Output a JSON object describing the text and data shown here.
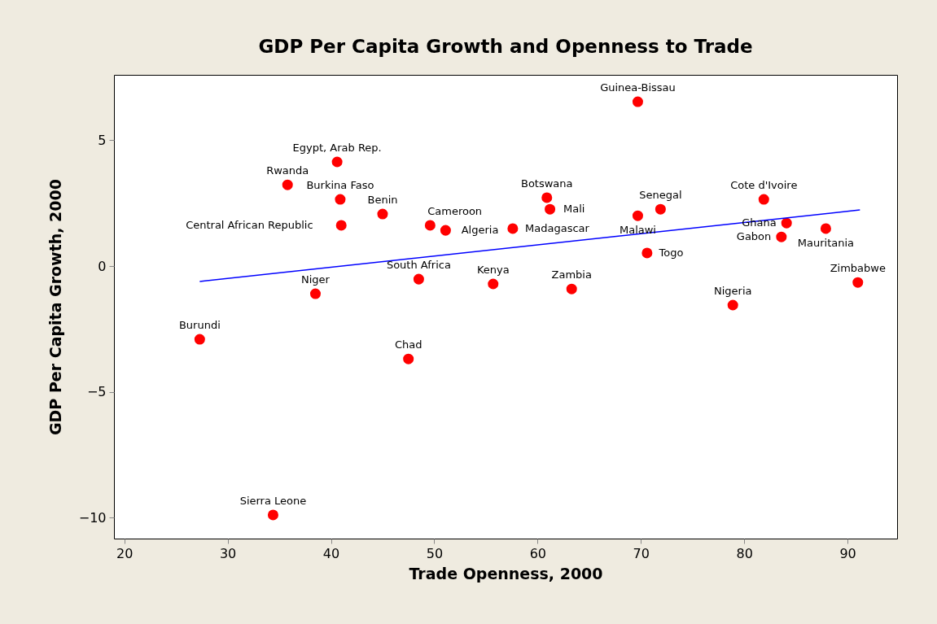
{
  "chart_data": {
    "type": "scatter",
    "title": "GDP Per Capita Growth and Openness to Trade",
    "xlabel": "Trade Openness, 2000",
    "ylabel": "GDP Per Capita Growth, 2000",
    "series": [
      {
        "color": "#ff0000",
        "marker": "circle",
        "x": [
          69.7,
          40.6,
          35.8,
          40.9,
          41.0,
          45.0,
          49.6,
          51.1,
          57.6,
          60.9,
          61.2,
          69.7,
          71.9,
          81.9,
          84.1,
          83.6,
          87.9,
          70.6,
          91.0,
          78.9,
          63.3,
          55.7,
          48.5,
          38.5,
          47.5,
          27.3,
          34.4
        ],
        "values": [
          6.53,
          4.14,
          3.23,
          2.65,
          1.62,
          2.07,
          1.62,
          1.42,
          1.49,
          2.72,
          2.26,
          2.0,
          2.26,
          2.65,
          1.71,
          1.16,
          1.49,
          0.52,
          -0.65,
          -1.55,
          -0.91,
          -0.71,
          -0.52,
          -1.1,
          -3.69,
          -2.91,
          -9.89
        ]
      },
      {
        "type": "line",
        "color": "#0000ff",
        "x": [
          27.3,
          91.2
        ],
        "values": [
          -0.61,
          2.23
        ]
      }
    ],
    "annotations": [
      {
        "text": "Guinea-Bissau",
        "x": 69.7,
        "y": 6.53
      },
      {
        "text": "Egypt, Arab Rep.",
        "x": 40.6,
        "y": 4.14
      },
      {
        "text": "Rwanda",
        "x": 35.8,
        "y": 3.23
      },
      {
        "text": "Burkina Faso",
        "x": 40.9,
        "y": 2.65
      },
      {
        "text": "Central African Republic",
        "x": 41.0,
        "y": 1.62
      },
      {
        "text": "Benin",
        "x": 45.0,
        "y": 2.07
      },
      {
        "text": "Cameroon",
        "x": 49.6,
        "y": 1.62
      },
      {
        "text": "Algeria",
        "x": 51.1,
        "y": 1.42
      },
      {
        "text": "Madagascar",
        "x": 57.6,
        "y": 1.49
      },
      {
        "text": "Botswana",
        "x": 60.9,
        "y": 2.72
      },
      {
        "text": "Mali",
        "x": 61.2,
        "y": 2.26
      },
      {
        "text": "Malawi",
        "x": 69.7,
        "y": 2.0
      },
      {
        "text": "Senegal",
        "x": 71.9,
        "y": 2.26
      },
      {
        "text": "Cote d'Ivoire",
        "x": 81.9,
        "y": 2.65
      },
      {
        "text": "Ghana",
        "x": 84.1,
        "y": 1.71
      },
      {
        "text": "Gabon",
        "x": 83.6,
        "y": 1.16
      },
      {
        "text": "Mauritania",
        "x": 87.9,
        "y": 1.49
      },
      {
        "text": "Togo",
        "x": 70.6,
        "y": 0.52
      },
      {
        "text": "Zimbabwe",
        "x": 91.0,
        "y": -0.65
      },
      {
        "text": "Nigeria",
        "x": 78.9,
        "y": -1.55
      },
      {
        "text": "Zambia",
        "x": 63.3,
        "y": -0.91
      },
      {
        "text": "Kenya",
        "x": 55.7,
        "y": -0.71
      },
      {
        "text": "South Africa",
        "x": 48.5,
        "y": -0.52
      },
      {
        "text": "Niger",
        "x": 38.5,
        "y": -1.1
      },
      {
        "text": "Chad",
        "x": 47.5,
        "y": -3.69
      },
      {
        "text": "Burundi",
        "x": 27.3,
        "y": -2.91
      },
      {
        "text": "Sierra Leone",
        "x": 34.4,
        "y": -9.89
      }
    ],
    "xlim": [
      19.0,
      94.8
    ],
    "ylim": [
      -10.83,
      7.6
    ],
    "xticks": [
      20,
      30,
      40,
      50,
      60,
      70,
      80,
      90
    ],
    "yticks": [
      -10,
      -5,
      0,
      5
    ],
    "grid": false
  }
}
